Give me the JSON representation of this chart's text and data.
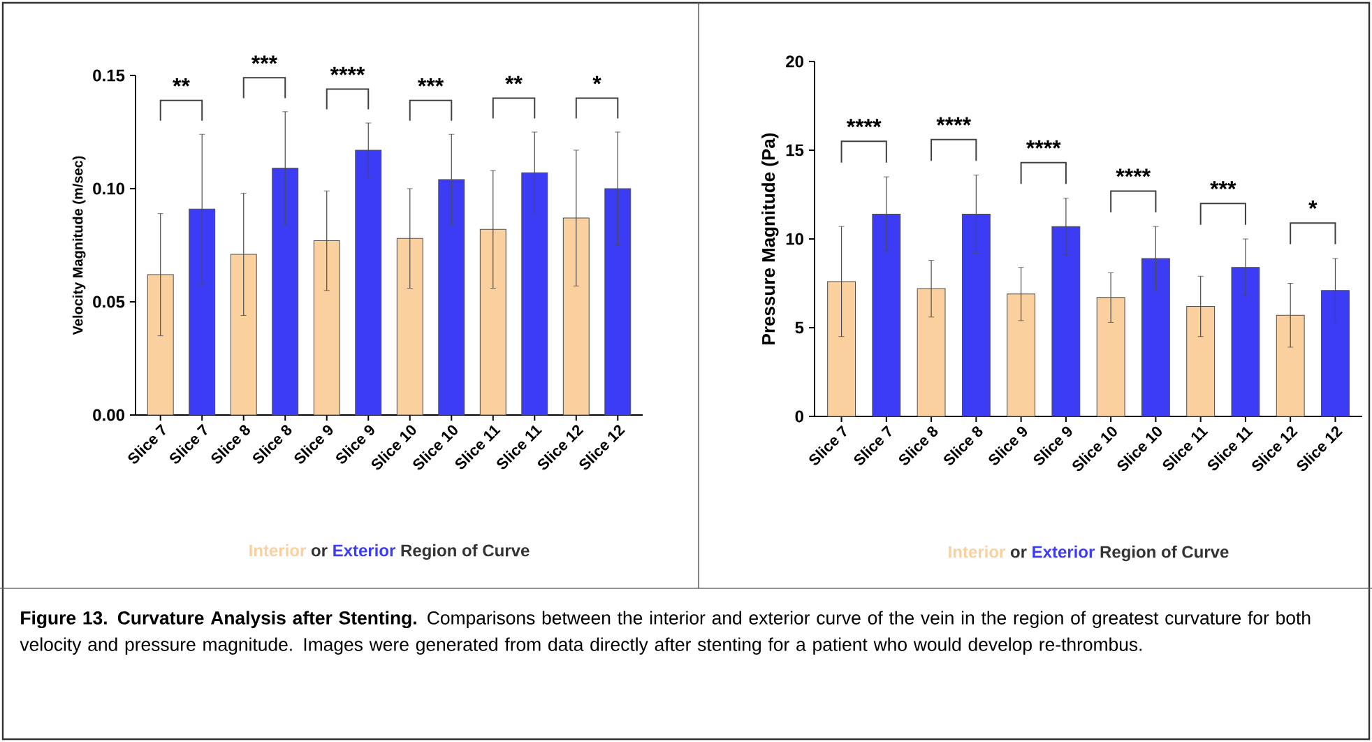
{
  "chart_data": [
    {
      "type": "bar",
      "ylabel": "Velocity Magnitude (m/sec)",
      "xlabel": "Region of Curve",
      "categories": [
        "Slice 7",
        "Slice 7",
        "Slice 8",
        "Slice 8",
        "Slice 9",
        "Slice 9",
        "Slice 10",
        "Slice 10",
        "Slice 11",
        "Slice 11",
        "Slice 12",
        "Slice 12"
      ],
      "series": [
        {
          "name": "Interior",
          "color": "#fbd09f",
          "values": [
            0.062,
            null,
            0.071,
            null,
            0.077,
            null,
            0.078,
            null,
            0.082,
            null,
            0.087,
            null
          ],
          "errors": [
            0.027,
            null,
            0.027,
            null,
            0.022,
            null,
            0.022,
            null,
            0.026,
            null,
            0.03,
            null
          ]
        },
        {
          "name": "Exterior",
          "color": "#3c3cf5",
          "values": [
            null,
            0.091,
            null,
            0.109,
            null,
            0.117,
            null,
            0.104,
            null,
            0.107,
            null,
            0.1
          ],
          "errors": [
            null,
            0.033,
            null,
            0.025,
            null,
            0.012,
            null,
            0.02,
            null,
            0.018,
            null,
            0.025
          ]
        }
      ],
      "ylim": [
        0,
        0.15
      ],
      "yticks": [
        {
          "value": 0,
          "label": "0.00"
        },
        {
          "value": 0.05,
          "label": "0.05"
        },
        {
          "value": 0.1,
          "label": "0.10"
        },
        {
          "value": 0.15,
          "label": "0.15"
        }
      ],
      "grid": false,
      "legend": "bottom",
      "annotations": [
        "**",
        "***",
        "****",
        "***",
        "**",
        "*",
        "or"
      ]
    },
    {
      "type": "bar",
      "ylabel": "Pressure Magnitude (Pa)",
      "xlabel": "Region of Curve",
      "categories": [
        "Slice 7",
        "Slice 7",
        "Slice 8",
        "Slice 8",
        "Slice 9",
        "Slice 9",
        "Slice 10",
        "Slice 10",
        "Slice 11",
        "Slice 11",
        "Slice 12",
        "Slice 12"
      ],
      "series": [
        {
          "name": "Interior",
          "color": "#fbd09f",
          "values": [
            7.6,
            null,
            7.2,
            null,
            6.9,
            null,
            6.7,
            null,
            6.2,
            null,
            5.7,
            null
          ],
          "errors": [
            3.1,
            null,
            1.6,
            null,
            1.5,
            null,
            1.4,
            null,
            1.7,
            null,
            1.8,
            null
          ]
        },
        {
          "name": "Exterior",
          "color": "#3c3cf5",
          "values": [
            null,
            11.4,
            null,
            11.4,
            null,
            10.7,
            null,
            8.9,
            null,
            8.4,
            null,
            7.1
          ],
          "errors": [
            null,
            2.1,
            null,
            2.2,
            null,
            1.6,
            null,
            1.8,
            null,
            1.6,
            null,
            1.8
          ]
        }
      ],
      "ylim": [
        0,
        20
      ],
      "yticks": [
        0,
        5,
        10,
        15,
        20
      ],
      "grid": false,
      "legend": "bottom",
      "annotations": [
        "****",
        "****",
        "****",
        "****",
        "***",
        "*",
        "or"
      ]
    },
    {
      "type": "other",
      "annotations": [
        "**Figure 13. Curvature Analysis after Stenting.**  Comparisons between the interior and exterior curve of the vein in the region of greatest curvature for both velocity and pressure magnitude. Images were generated from data directly after stenting for a patient who would develop re-thrombus."
      ]
    }
  ]
}
